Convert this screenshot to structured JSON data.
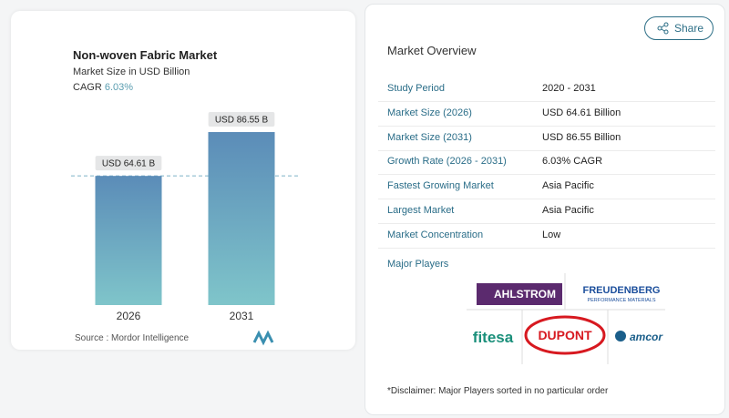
{
  "chart_data": {
    "type": "bar",
    "title": "Non-woven Fabric Market",
    "subtitle": "Market Size in USD Billion",
    "cagr_label": "CAGR",
    "cagr_value": "6.03%",
    "categories": [
      "2026",
      "2031"
    ],
    "values": [
      64.61,
      86.55
    ],
    "value_labels": [
      "USD 64.61 B",
      "USD 86.55 B"
    ],
    "source": "Source :  Mordor Intelligence"
  },
  "share": "Share",
  "overview": {
    "title": "Market Overview",
    "rows": [
      [
        "Study Period",
        "2020 - 2031"
      ],
      [
        "Market Size (2026)",
        "USD 64.61 Billion"
      ],
      [
        "Market Size (2031)",
        "USD 86.55 Billion"
      ],
      [
        "Growth Rate (2026 - 2031)",
        "6.03% CAGR"
      ],
      [
        "Fastest Growing Market",
        "Asia Pacific"
      ],
      [
        "Largest Market",
        "Asia Pacific"
      ],
      [
        "Market Concentration",
        "Low"
      ]
    ],
    "players_title": "Major Players",
    "players": [
      "AHLSTROM",
      "FREUDENBERG",
      "fitesa",
      "DUPONT",
      "amcor"
    ],
    "freudenberg_sub": "PERFORMANCE MATERIALS",
    "disclaimer": "*Disclaimer: Major Players sorted in no particular order"
  }
}
